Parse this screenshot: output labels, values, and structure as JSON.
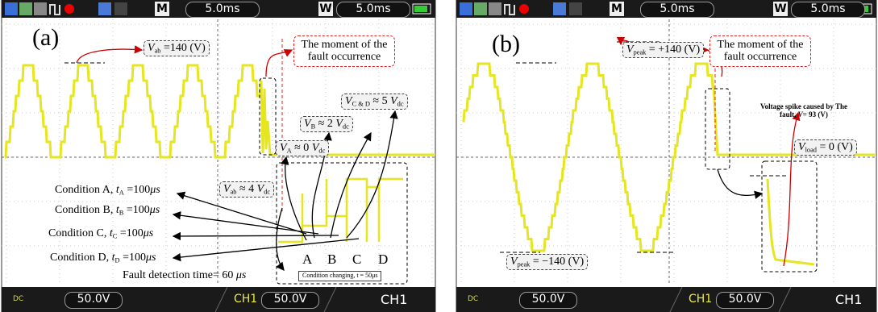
{
  "panels": [
    {
      "label": "(a)",
      "toolbar": {
        "m": "M",
        "time": "5.0ms",
        "w": "W",
        "w_time": "5.0ms"
      },
      "footer": {
        "dc": "DC",
        "volts": "50.0V",
        "channel": "CH1",
        "ch_volts": "50.0V",
        "ch_name": "CH1"
      },
      "annotations": [
        {
          "parts": [
            {
              "text": "V",
              "style": "it"
            },
            {
              "text": "ab",
              "style": "sub"
            },
            {
              "text": " =140 (V)"
            }
          ]
        },
        {
          "parts": [
            {
              "text": "The moment of the fault occurrence"
            }
          ]
        },
        {
          "parts": [
            {
              "text": "V",
              "style": "it"
            },
            {
              "text": "C & D",
              "style": "sub"
            },
            {
              "text": " ≈ 5 "
            },
            {
              "text": "V",
              "style": "it"
            },
            {
              "text": "dc",
              "style": "sub"
            }
          ]
        },
        {
          "parts": [
            {
              "text": "V",
              "style": "it"
            },
            {
              "text": "B",
              "style": "sub"
            },
            {
              "text": " ≈ 2 "
            },
            {
              "text": "V",
              "style": "it"
            },
            {
              "text": "dc",
              "style": "sub"
            }
          ]
        },
        {
          "parts": [
            {
              "text": "V",
              "style": "it"
            },
            {
              "text": "A",
              "style": "sub"
            },
            {
              "text": " ≈ 0 "
            },
            {
              "text": "V",
              "style": "it"
            },
            {
              "text": "dc",
              "style": "sub"
            }
          ]
        },
        {
          "parts": [
            {
              "text": "V",
              "style": "it"
            },
            {
              "text": "ab",
              "style": "sub"
            },
            {
              "text": " ≈ 4 "
            },
            {
              "text": "V",
              "style": "it"
            },
            {
              "text": "dc",
              "style": "sub"
            }
          ]
        },
        {
          "parts": [
            {
              "text": "Condition A, "
            },
            {
              "text": "t",
              "style": "it"
            },
            {
              "text": "A",
              "style": "sub"
            },
            {
              "text": " =100"
            },
            {
              "text": "μs",
              "style": "it"
            }
          ]
        },
        {
          "parts": [
            {
              "text": "Condition B, "
            },
            {
              "text": "t",
              "style": "it"
            },
            {
              "text": "B",
              "style": "sub"
            },
            {
              "text": " =100"
            },
            {
              "text": "μs",
              "style": "it"
            }
          ]
        },
        {
          "parts": [
            {
              "text": "Condition C, "
            },
            {
              "text": "t",
              "style": "it"
            },
            {
              "text": "C",
              "style": "sub"
            },
            {
              "text": " =100"
            },
            {
              "text": "μs",
              "style": "it"
            }
          ]
        },
        {
          "parts": [
            {
              "text": "Condition D, "
            },
            {
              "text": "t",
              "style": "it"
            },
            {
              "text": "D",
              "style": "sub"
            },
            {
              "text": " =100"
            },
            {
              "text": "μs",
              "style": "it"
            }
          ]
        },
        {
          "parts": [
            {
              "text": "Fault detection time= 60 "
            },
            {
              "text": "μs",
              "style": "it"
            }
          ]
        },
        {
          "parts": [
            {
              "text": "A"
            }
          ]
        },
        {
          "parts": [
            {
              "text": "B"
            }
          ]
        },
        {
          "parts": [
            {
              "text": "C"
            }
          ]
        },
        {
          "parts": [
            {
              "text": "D"
            }
          ]
        },
        {
          "parts": [
            {
              "text": "Condition changing, t = 50μs"
            }
          ]
        }
      ]
    },
    {
      "label": "(b)",
      "toolbar": {
        "m": "M",
        "time": "5.0ms",
        "w": "W",
        "w_time": "5.0ms"
      },
      "footer": {
        "dc": "DC",
        "volts": "50.0V",
        "channel": "CH1",
        "ch_volts": "50.0V",
        "ch_name": "CH1"
      },
      "annotations": [
        {
          "parts": [
            {
              "text": "V",
              "style": "it"
            },
            {
              "text": "peak",
              "style": "sub"
            },
            {
              "text": " = +140 (V)"
            }
          ]
        },
        {
          "parts": [
            {
              "text": "The moment of the fault occurrence"
            }
          ]
        },
        {
          "parts": [
            {
              "text": "Voltage spike caused by The fault, "
            },
            {
              "text": "V",
              "style": "it"
            },
            {
              "text": "= 93 (V)"
            }
          ]
        },
        {
          "parts": [
            {
              "text": "V",
              "style": "it"
            },
            {
              "text": "load",
              "style": "sub"
            },
            {
              "text": " = 0 (V)"
            }
          ]
        },
        {
          "parts": [
            {
              "text": "V",
              "style": "it"
            },
            {
              "text": "peak",
              "style": "sub"
            },
            {
              "text": " = −140 (V)"
            }
          ]
        }
      ]
    }
  ]
}
